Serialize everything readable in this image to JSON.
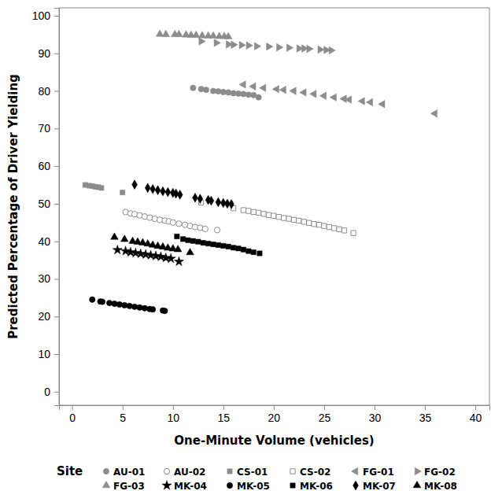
{
  "chart_data": {
    "type": "scatter",
    "x_label": "One-Minute Volume (vehicles)",
    "y_label": "Predicted Percentage of Driver Yielding",
    "xlim": [
      -1.3,
      41.4
    ],
    "ylim": [
      -3.6,
      102.1
    ],
    "xticks": [
      0,
      5,
      10,
      15,
      20,
      25,
      30,
      35,
      40
    ],
    "yticks": [
      0,
      10,
      20,
      30,
      40,
      50,
      60,
      70,
      80,
      90,
      100
    ],
    "grid": false,
    "legend": "bottom",
    "legend_title": "Site",
    "series": [
      {
        "name": "AU-01",
        "color": "#8c8c8c",
        "marker": "circle",
        "x": [
          12,
          12.8,
          13.3,
          14,
          14.5,
          15,
          15.5,
          16,
          16.5,
          17,
          17.5,
          18,
          18.5
        ],
        "values": [
          80.8,
          80.5,
          80.3,
          80.0,
          79.9,
          79.7,
          79.6,
          79.4,
          79.3,
          79.2,
          79.0,
          78.9,
          78.3
        ]
      },
      {
        "name": "AU-02",
        "color": "#8c8c8c",
        "marker": "circle-open",
        "x": [
          5.3,
          5.8,
          6.2,
          6.7,
          7.2,
          7.7,
          8.2,
          8.7,
          9.2,
          9.6,
          10,
          10.6,
          11.2,
          11.7,
          12.2,
          12.7,
          13.2,
          14.4
        ],
        "values": [
          47.8,
          47.4,
          47.2,
          46.9,
          46.6,
          46.3,
          46.0,
          45.7,
          45.5,
          45.3,
          45.0,
          44.7,
          44.4,
          44.1,
          43.8,
          43.6,
          43.3,
          43.0
        ]
      },
      {
        "name": "CS-01",
        "color": "#8c8c8c",
        "marker": "square",
        "x": [
          1.3,
          1.7,
          2,
          2.3,
          2.6,
          2.9,
          5
        ],
        "values": [
          55.0,
          54.8,
          54.7,
          54.5,
          54.4,
          54.2,
          53.0
        ]
      },
      {
        "name": "CS-02",
        "color": "#8c8c8c",
        "marker": "square-open",
        "x": [
          12.8,
          16,
          17,
          17.5,
          18,
          18.5,
          19,
          19.5,
          20,
          20.5,
          21,
          21.5,
          22,
          22.5,
          23,
          23.5,
          24,
          24.5,
          25,
          25.5,
          26,
          26.5,
          27,
          27.9
        ],
        "values": [
          50.3,
          48.8,
          48.3,
          48.1,
          47.8,
          47.6,
          47.3,
          47.0,
          46.8,
          46.5,
          46.2,
          46.0,
          45.7,
          45.5,
          45.2,
          44.9,
          44.6,
          44.4,
          44.1,
          43.8,
          43.5,
          43.2,
          42.9,
          42.2
        ]
      },
      {
        "name": "FG-01",
        "color": "#8c8c8c",
        "marker": "triangle-left",
        "x": [
          17,
          18,
          19,
          20.3,
          21,
          22,
          23,
          24,
          25,
          26,
          27,
          27.5,
          28.8,
          29.6,
          30.8,
          36
        ],
        "values": [
          81.7,
          81.2,
          80.8,
          80.5,
          80.3,
          80.0,
          79.6,
          79.2,
          78.7,
          78.3,
          77.9,
          77.7,
          77.3,
          77.0,
          76.5,
          74.0
        ]
      },
      {
        "name": "FG-02",
        "color": "#8c8c8c",
        "marker": "triangle-right",
        "x": [
          12.8,
          14.3,
          15.5,
          16,
          16.8,
          17.5,
          18.3,
          19.5,
          20.5,
          21.5,
          22.5,
          23,
          23.5,
          24.6,
          25.2,
          25.7
        ],
        "values": [
          93.2,
          92.8,
          92.4,
          92.3,
          92.2,
          92.1,
          91.9,
          91.8,
          91.6,
          91.5,
          91.3,
          91.3,
          91.2,
          91.0,
          90.9,
          90.8
        ]
      },
      {
        "name": "FG-03",
        "color": "#8c8c8c",
        "marker": "triangle",
        "x": [
          8.7,
          9.3,
          10.2,
          10.6,
          11.3,
          11.8,
          12.3,
          12.9,
          13.5,
          14,
          14.6,
          15.1,
          15.5
        ],
        "values": [
          95.1,
          95.0,
          95.0,
          95.0,
          94.9,
          94.8,
          94.8,
          94.7,
          94.6,
          94.6,
          94.5,
          94.5,
          94.4
        ]
      },
      {
        "name": "MK-04",
        "color": "#000000",
        "marker": "star",
        "x": [
          4.5,
          5.3,
          5.8,
          6.3,
          6.8,
          7.3,
          7.8,
          8.3,
          8.8,
          9.3,
          9.8,
          10.6
        ],
        "values": [
          37.7,
          37.4,
          37.1,
          36.9,
          36.7,
          36.5,
          36.3,
          36.1,
          35.9,
          35.6,
          35.4,
          34.6
        ]
      },
      {
        "name": "MK-05",
        "color": "#000000",
        "marker": "circle",
        "x": [
          2,
          2.8,
          3,
          3.7,
          4.2,
          4.7,
          5.2,
          5.7,
          6.2,
          6.7,
          7.2,
          7.7,
          8,
          9,
          9.2
        ],
        "values": [
          24.5,
          24.0,
          23.9,
          23.6,
          23.4,
          23.2,
          23.0,
          22.8,
          22.6,
          22.4,
          22.2,
          22.0,
          21.9,
          21.6,
          21.5
        ]
      },
      {
        "name": "MK-06",
        "color": "#000000",
        "marker": "square",
        "x": [
          10.4,
          11,
          11.5,
          12,
          12.5,
          13,
          13.5,
          14,
          14.5,
          15,
          15.5,
          16,
          16.5,
          17,
          17.5,
          18,
          18.6
        ],
        "values": [
          41.3,
          40.6,
          40.3,
          40.1,
          39.9,
          39.6,
          39.4,
          39.2,
          39.0,
          38.8,
          38.6,
          38.3,
          38.1,
          37.8,
          37.4,
          37.1,
          36.8
        ]
      },
      {
        "name": "MK-07",
        "color": "#000000",
        "marker": "diamond",
        "x": [
          6.2,
          7.5,
          8,
          8.5,
          9,
          9.5,
          10,
          10.3,
          10.7,
          12.2,
          12.7,
          13.5,
          13.8,
          14.5,
          15,
          15.4,
          15.8
        ],
        "values": [
          55.1,
          54.2,
          53.9,
          53.6,
          53.3,
          53.1,
          52.9,
          52.7,
          52.4,
          51.6,
          51.3,
          51.0,
          50.8,
          50.4,
          50.2,
          50.0,
          49.9
        ]
      },
      {
        "name": "MK-08",
        "color": "#000000",
        "marker": "triangle",
        "x": [
          4.2,
          5.2,
          6,
          6.5,
          7,
          7.5,
          8,
          8.5,
          9,
          9.5,
          10,
          10.5,
          11.7
        ],
        "values": [
          41.1,
          40.5,
          40.0,
          39.8,
          39.6,
          39.3,
          39.0,
          38.7,
          38.5,
          38.2,
          38.0,
          37.8,
          37.0
        ]
      }
    ]
  }
}
